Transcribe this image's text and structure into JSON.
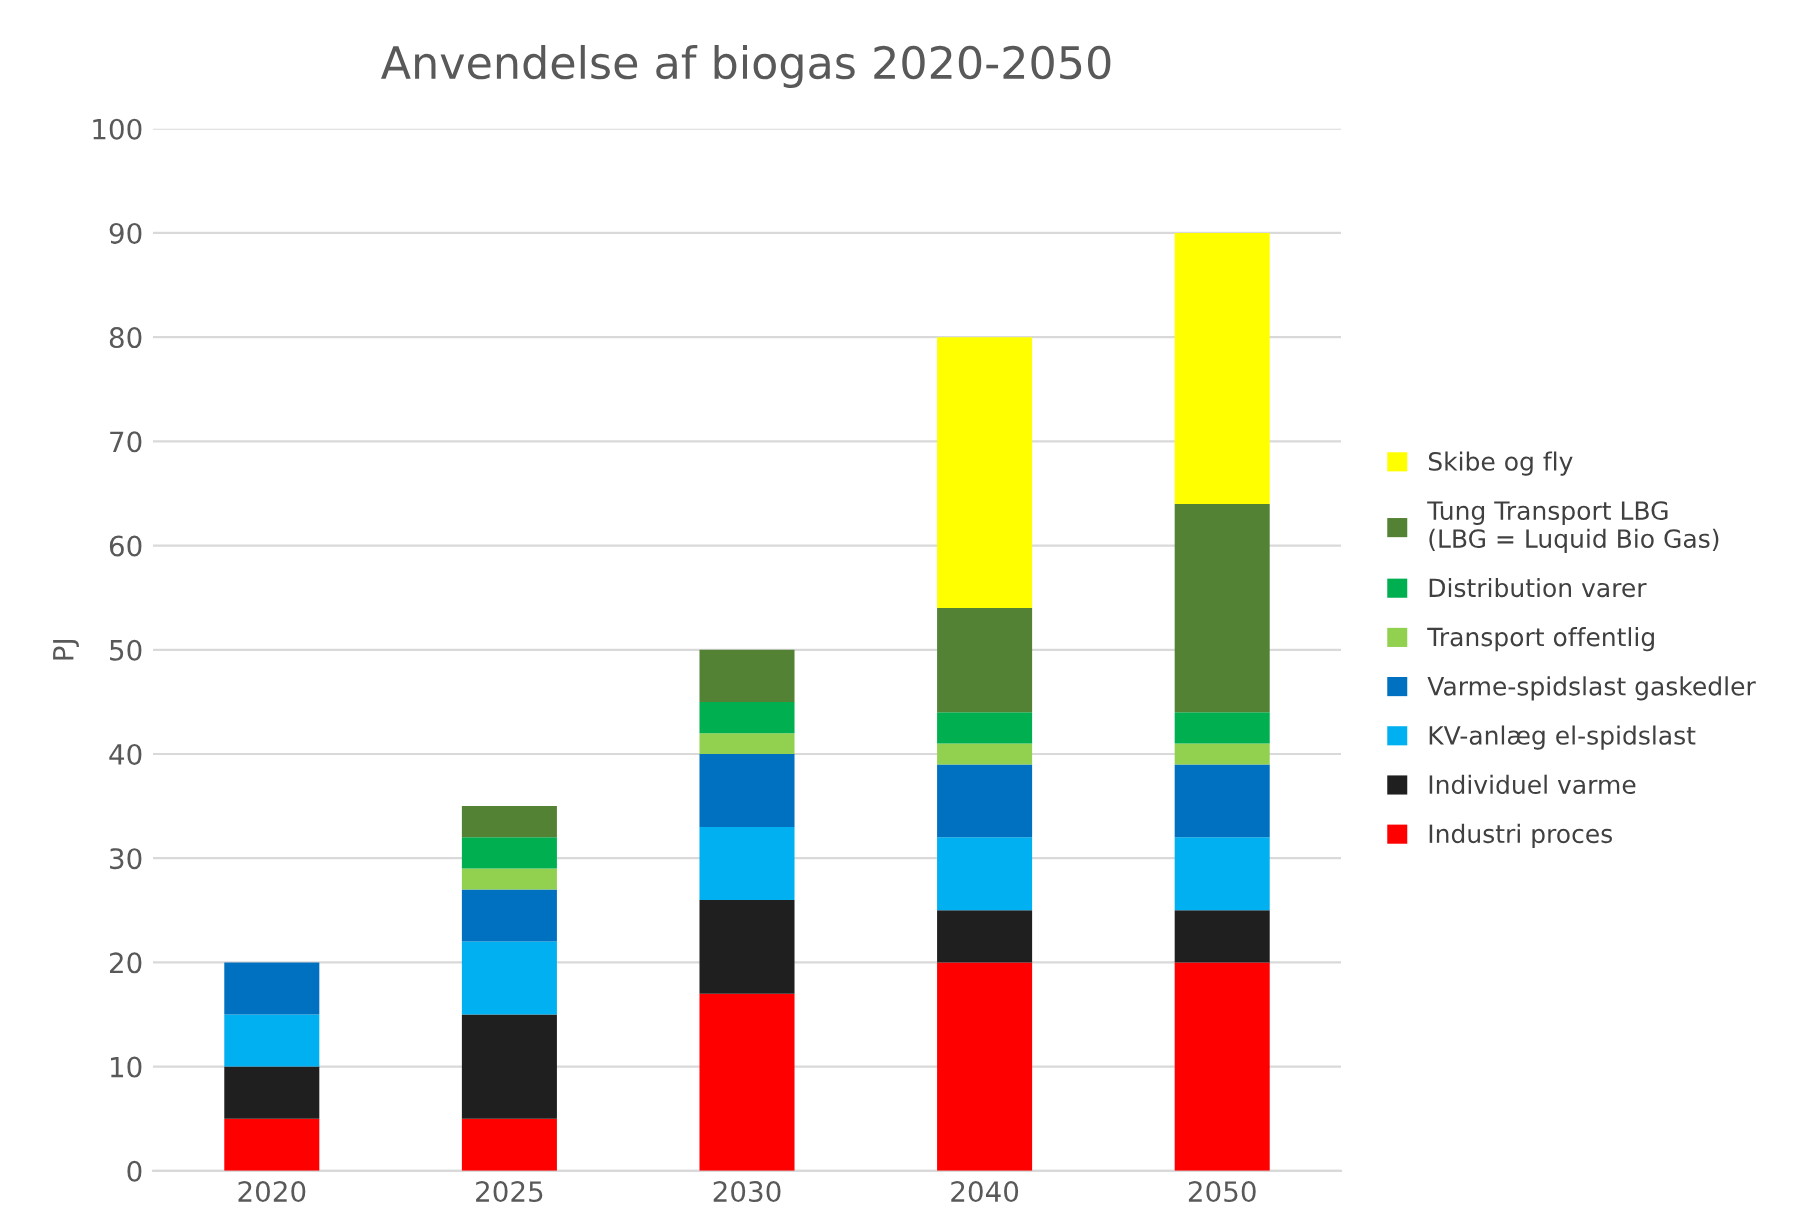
{
  "chart_data": {
    "type": "bar",
    "stacked": true,
    "title": "Anvendelse af biogas 2020-2050",
    "ylabel": "PJ",
    "categories": [
      "2020",
      "2025",
      "2030",
      "2040",
      "2050"
    ],
    "series": [
      {
        "name": "Industri proces",
        "color": "#ff0000",
        "values": [
          5,
          5,
          17,
          20,
          20
        ]
      },
      {
        "name": "Individuel varme",
        "color": "#1f1f1f",
        "values": [
          5,
          10,
          9,
          5,
          5
        ]
      },
      {
        "name": "KV-anlæg el-spidslast",
        "color": "#00b0f0",
        "values": [
          5,
          7,
          7,
          7,
          7
        ]
      },
      {
        "name": "Varme-spidslast gaskedler",
        "color": "#0070c0",
        "values": [
          5,
          5,
          7,
          7,
          7
        ]
      },
      {
        "name": "Transport offentlig",
        "color": "#92d050",
        "values": [
          null,
          2,
          2,
          2,
          2
        ]
      },
      {
        "name": "Distribution varer",
        "color": "#00b050",
        "values": [
          null,
          3,
          3,
          3,
          3
        ]
      },
      {
        "name": "Tung Transport LBG\n(LBG = Luquid Bio Gas)",
        "color": "#548235",
        "values": [
          null,
          3,
          5,
          10,
          20
        ]
      },
      {
        "name": "Skibe og fly",
        "color": "#ffff00",
        "values": [
          null,
          null,
          null,
          26,
          26
        ]
      }
    ],
    "ylim": [
      0,
      100
    ],
    "yticks": [
      0,
      10,
      20,
      30,
      40,
      50,
      60,
      70,
      80,
      90,
      100
    ],
    "grid": "y",
    "legend": "right"
  }
}
